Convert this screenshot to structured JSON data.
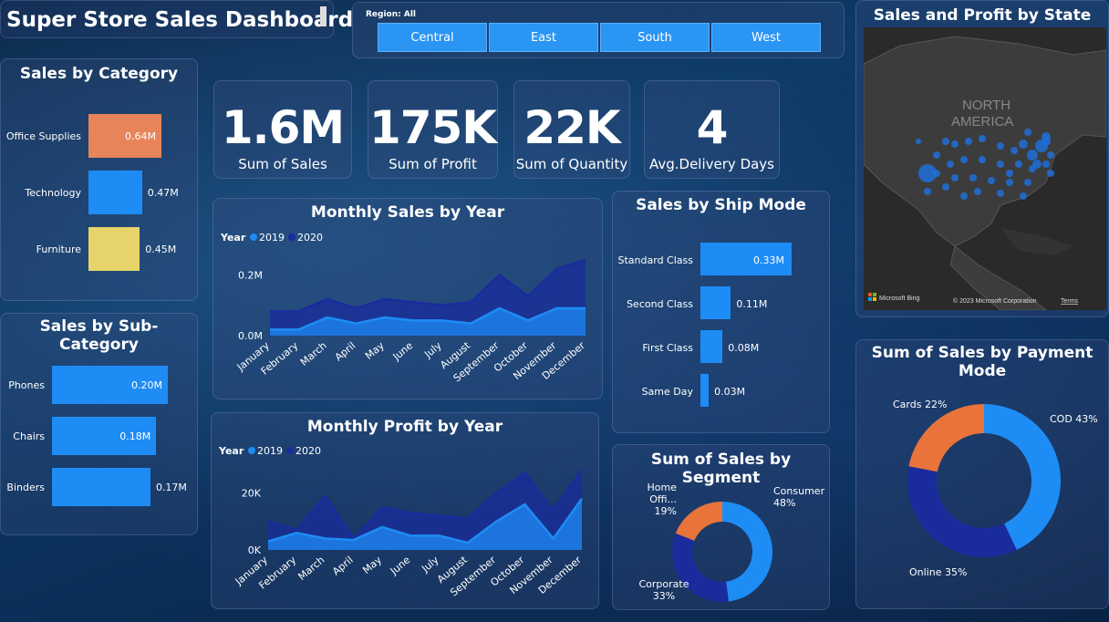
{
  "header": {
    "title": "Super Store Sales Dashboard"
  },
  "region": {
    "label": "Region: All",
    "buttons": [
      "Central",
      "East",
      "South",
      "West"
    ]
  },
  "kpis": [
    {
      "value": "1.6M",
      "label": "Sum of Sales"
    },
    {
      "value": "175K",
      "label": "Sum of Profit"
    },
    {
      "value": "22K",
      "label": "Sum of Quantity"
    },
    {
      "value": "4",
      "label": "Avg.Delivery Days"
    }
  ],
  "category": {
    "title": "Sales by Category",
    "items": [
      {
        "name": "Office Supplies",
        "value": "0.64M",
        "color": "#e8845a"
      },
      {
        "name": "Technology",
        "value": "0.47M",
        "color": "#1e8cf5"
      },
      {
        "name": "Furniture",
        "value": "0.45M",
        "color": "#e6d36a"
      }
    ]
  },
  "subcategory": {
    "title": "Sales by Sub-Category",
    "items": [
      {
        "name": "Phones",
        "value": "0.20M"
      },
      {
        "name": "Chairs",
        "value": "0.18M"
      },
      {
        "name": "Binders",
        "value": "0.17M"
      }
    ]
  },
  "shipmode": {
    "title": "Sales by Ship Mode",
    "items": [
      {
        "name": "Standard Class",
        "value": "0.33M"
      },
      {
        "name": "Second Class",
        "value": "0.11M"
      },
      {
        "name": "First Class",
        "value": "0.08M"
      },
      {
        "name": "Same Day",
        "value": "0.03M"
      }
    ]
  },
  "map": {
    "title": "Sales and Profit by State",
    "label_1": "NORTH",
    "label_2": "AMERICA",
    "bing": "Microsoft Bing",
    "copyright": "© 2023 Microsoft Corporation",
    "terms": "Terms"
  },
  "monthly_sales": {
    "title": "Monthly Sales by Year",
    "legend_title": "Year",
    "yticks": [
      "0.2M",
      "0.0M"
    ]
  },
  "monthly_profit": {
    "title": "Monthly Profit by Year",
    "legend_title": "Year",
    "yticks": [
      "20K",
      "0K"
    ]
  },
  "segment": {
    "title": "Sum of Sales by Segment",
    "labels": [
      {
        "name": "Consumer",
        "pct": "48%"
      },
      {
        "name": "Home Offi...",
        "pct": "19%"
      },
      {
        "name": "Corporate",
        "pct": "33%"
      }
    ]
  },
  "payment": {
    "title": "Sum of Sales by Payment Mode",
    "labels": [
      "COD 43%",
      "Cards 22%",
      "Online 35%"
    ]
  },
  "chart_data": [
    {
      "type": "bar",
      "title": "Sales by Category",
      "categories": [
        "Office Supplies",
        "Technology",
        "Furniture"
      ],
      "values": [
        0.64,
        0.47,
        0.45
      ]
    },
    {
      "type": "bar",
      "title": "Sales by Sub-Category",
      "categories": [
        "Phones",
        "Chairs",
        "Binders"
      ],
      "values": [
        0.2,
        0.18,
        0.17
      ]
    },
    {
      "type": "bar",
      "title": "Sales by Ship Mode",
      "categories": [
        "Standard Class",
        "Second Class",
        "First Class",
        "Same Day"
      ],
      "values": [
        0.33,
        0.11,
        0.08,
        0.03
      ]
    },
    {
      "type": "area",
      "title": "Monthly Sales by Year",
      "legend_title": "Year",
      "x": [
        "January",
        "February",
        "March",
        "April",
        "May",
        "June",
        "July",
        "August",
        "September",
        "October",
        "November",
        "December"
      ],
      "series": [
        {
          "name": "2019",
          "color": "#1e8cf5",
          "values": [
            0.02,
            0.02,
            0.06,
            0.04,
            0.06,
            0.05,
            0.05,
            0.04,
            0.09,
            0.05,
            0.09,
            0.09
          ]
        },
        {
          "name": "2020",
          "color": "#1a2c9c",
          "values": [
            0.08,
            0.08,
            0.12,
            0.09,
            0.12,
            0.11,
            0.1,
            0.11,
            0.2,
            0.13,
            0.22,
            0.25
          ]
        }
      ],
      "ylim": [
        0,
        0.3
      ]
    },
    {
      "type": "area",
      "title": "Monthly Profit by Year",
      "legend_title": "Year",
      "x": [
        "January",
        "February",
        "March",
        "April",
        "May",
        "June",
        "July",
        "August",
        "September",
        "October",
        "November",
        "December"
      ],
      "series": [
        {
          "name": "2019",
          "color": "#1e8cf5",
          "values": [
            3000,
            6000,
            4000,
            3500,
            8000,
            5000,
            5000,
            2500,
            10000,
            16000,
            4000,
            18000
          ]
        },
        {
          "name": "2020",
          "color": "#1a2c9c",
          "values": [
            10000,
            7000,
            19000,
            4000,
            15000,
            13000,
            12000,
            11000,
            20000,
            27000,
            14000,
            28000
          ]
        }
      ],
      "ylim": [
        0,
        32000
      ]
    },
    {
      "type": "pie",
      "title": "Sum of Sales by Segment",
      "categories": [
        "Consumer",
        "Corporate",
        "Home Offi..."
      ],
      "values": [
        48,
        33,
        19
      ],
      "colors": [
        "#1e8cf5",
        "#1a2c9c",
        "#e8743b"
      ]
    },
    {
      "type": "pie",
      "title": "Sum of Sales by Payment Mode",
      "categories": [
        "COD",
        "Online",
        "Cards"
      ],
      "values": [
        43,
        35,
        22
      ],
      "colors": [
        "#1e8cf5",
        "#1a2c9c",
        "#e8743b"
      ]
    }
  ]
}
